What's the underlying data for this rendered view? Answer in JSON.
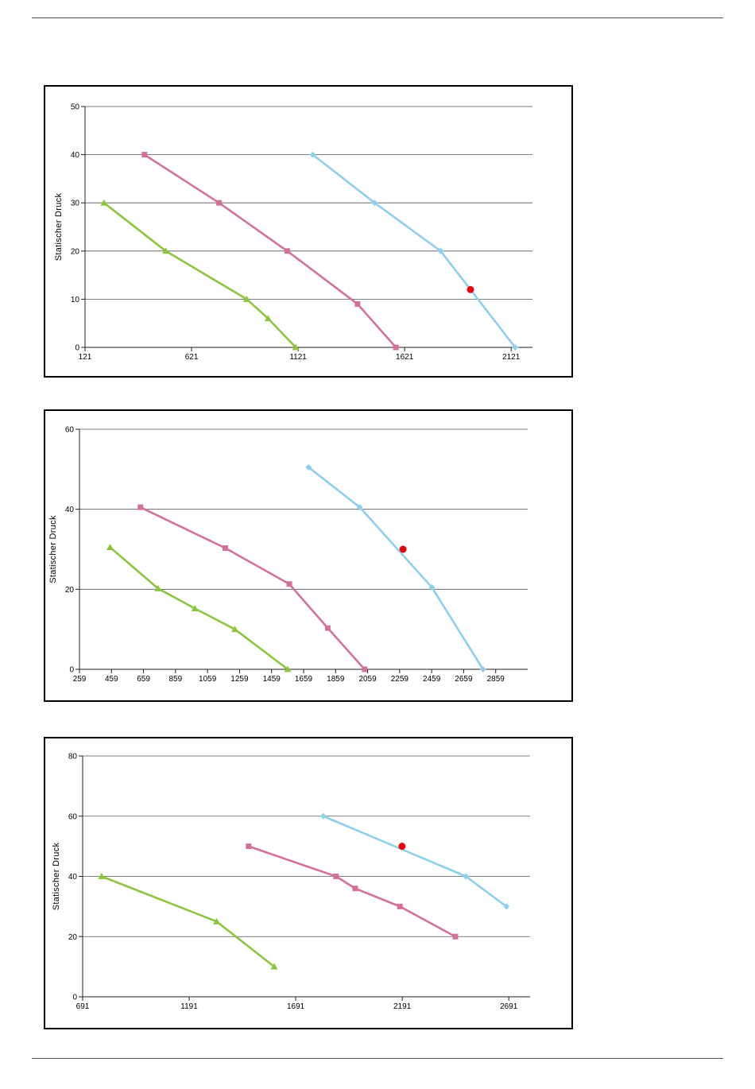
{
  "colors": {
    "blue": "#8ecfee",
    "pink": "#d4719a",
    "green": "#8cc63f",
    "point": "#e5060b",
    "grid": "#555555"
  },
  "chart_data": [
    {
      "type": "line",
      "ylabel": "Statischer  Druck",
      "xlim": [
        121,
        2221
      ],
      "ylim": [
        0,
        50
      ],
      "xticks": [
        121,
        621,
        1121,
        1621,
        2121
      ],
      "yticks": [
        0,
        10,
        20,
        30,
        40,
        50
      ],
      "grid": "horizontal",
      "series": [
        {
          "color": "blue",
          "marker": "diamond",
          "x": [
            1190,
            1480,
            1790,
            2140
          ],
          "y": [
            40,
            30,
            20,
            0
          ]
        },
        {
          "color": "pink",
          "marker": "square",
          "x": [
            400,
            750,
            1070,
            1400,
            1580
          ],
          "y": [
            40,
            30,
            20,
            9,
            0
          ]
        },
        {
          "color": "green",
          "marker": "triangle",
          "x": [
            210,
            500,
            880,
            980,
            1110
          ],
          "y": [
            30,
            20,
            10,
            6,
            0
          ]
        }
      ],
      "operating_point": {
        "x": 1930,
        "y": 12
      }
    },
    {
      "type": "line",
      "ylabel": "Statischer  Druck",
      "xlim": [
        259,
        3059
      ],
      "ylim": [
        0,
        60
      ],
      "xticks": [
        259,
        459,
        659,
        859,
        1059,
        1259,
        1459,
        1659,
        1859,
        2059,
        2259,
        2459,
        2659,
        2859
      ],
      "yticks": [
        0,
        20,
        40,
        60
      ],
      "grid": "horizontal",
      "series": [
        {
          "color": "blue",
          "marker": "diamond",
          "x": [
            1690,
            2010,
            2460,
            2780
          ],
          "y": [
            50.5,
            40.5,
            20.5,
            0
          ]
        },
        {
          "color": "pink",
          "marker": "square",
          "x": [
            640,
            1170,
            1570,
            1810,
            2040
          ],
          "y": [
            40.5,
            30.3,
            21.3,
            10.3,
            0
          ]
        },
        {
          "color": "green",
          "marker": "triangle",
          "x": [
            450,
            750,
            980,
            1230,
            1560
          ],
          "y": [
            30.5,
            20.2,
            15.2,
            10,
            0
          ]
        }
      ],
      "operating_point": {
        "x": 2280,
        "y": 30
      }
    },
    {
      "type": "line",
      "ylabel": "Statischer  Druck",
      "xlim": [
        691,
        2791
      ],
      "ylim": [
        0,
        80
      ],
      "xticks": [
        691,
        1191,
        1691,
        2191,
        2691
      ],
      "yticks": [
        0,
        20,
        40,
        60,
        80
      ],
      "grid": "horizontal",
      "series": [
        {
          "color": "blue",
          "marker": "diamond",
          "x": [
            1820,
            2490,
            2680
          ],
          "y": [
            60,
            40,
            30
          ]
        },
        {
          "color": "pink",
          "marker": "square",
          "x": [
            1470,
            1880,
            1970,
            2180,
            2440
          ],
          "y": [
            50,
            40,
            36,
            30,
            20
          ]
        },
        {
          "color": "green",
          "marker": "triangle",
          "x": [
            780,
            1320,
            1590
          ],
          "y": [
            40,
            25,
            10
          ]
        }
      ],
      "operating_point": {
        "x": 2190,
        "y": 50
      }
    }
  ]
}
